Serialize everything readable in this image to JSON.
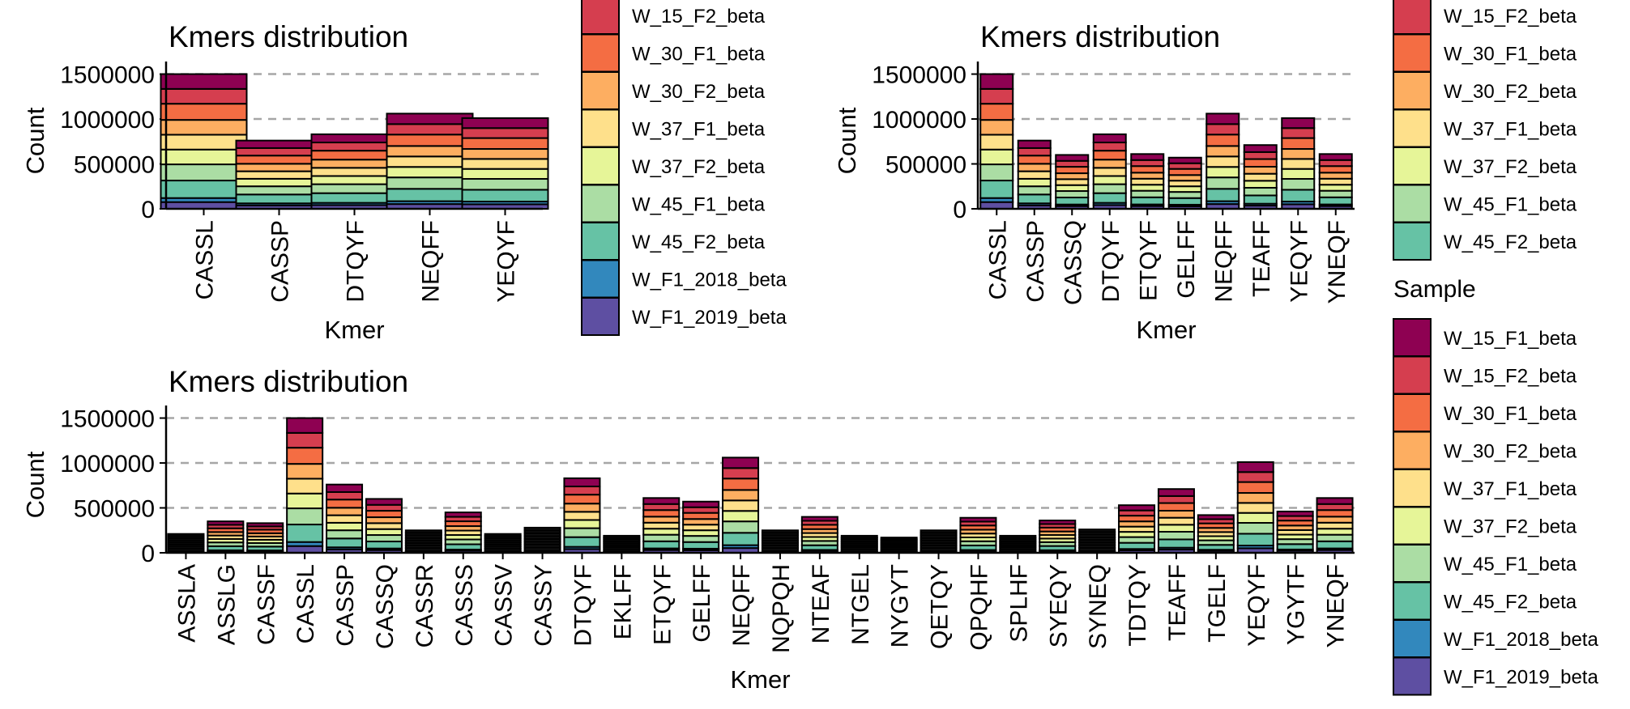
{
  "chart_data": [
    {
      "type": "bar",
      "stacked": true,
      "title": "Kmers distribution",
      "xlabel": "Kmer",
      "ylabel": "Count",
      "ylim": [
        0,
        1550000
      ],
      "yticks": [
        "0",
        "500000",
        "1000000",
        "1500000"
      ],
      "ytick_values": [
        0,
        500000,
        1000000,
        1500000
      ],
      "grid": "horizontal dashed",
      "categories": [
        "CASSL",
        "CASSP",
        "DTQYF",
        "NEQFF",
        "YEQYF"
      ],
      "totals": [
        1500000,
        760000,
        830000,
        1060000,
        1010000
      ],
      "legend_title": "",
      "legend_entries": [
        "W_15_F2_beta",
        "W_30_F1_beta",
        "W_30_F2_beta",
        "W_37_F1_beta",
        "W_37_F2_beta",
        "W_45_F1_beta",
        "W_45_F2_beta",
        "W_F1_2018_beta",
        "W_F1_2019_beta"
      ]
    },
    {
      "type": "bar",
      "stacked": true,
      "title": "Kmers distribution",
      "xlabel": "Kmer",
      "ylabel": "Count",
      "ylim": [
        0,
        1550000
      ],
      "yticks": [
        "0",
        "500000",
        "1000000",
        "1500000"
      ],
      "ytick_values": [
        0,
        500000,
        1000000,
        1500000
      ],
      "grid": "horizontal dashed",
      "categories": [
        "CASSL",
        "CASSP",
        "CASSQ",
        "DTQYF",
        "ETQYF",
        "GELFF",
        "NEQFF",
        "TEAFF",
        "YEQYF",
        "YNEQF"
      ],
      "totals": [
        1500000,
        760000,
        600000,
        830000,
        610000,
        570000,
        1060000,
        710000,
        1010000,
        610000
      ],
      "legend_title": "",
      "legend_entries": [
        "W_15_F2_beta",
        "W_30_F1_beta",
        "W_30_F2_beta",
        "W_37_F1_beta",
        "W_37_F2_beta",
        "W_45_F1_beta",
        "W_45_F2_beta"
      ]
    },
    {
      "type": "bar",
      "stacked": true,
      "title": "Kmers distribution",
      "xlabel": "Kmer",
      "ylabel": "Count",
      "ylim": [
        0,
        1550000
      ],
      "yticks": [
        "0",
        "500000",
        "1000000",
        "1500000"
      ],
      "ytick_values": [
        0,
        500000,
        1000000,
        1500000
      ],
      "grid": "horizontal dashed",
      "categories": [
        "ASSLA",
        "ASSLG",
        "CASSF",
        "CASSL",
        "CASSP",
        "CASSQ",
        "CASSR",
        "CASSS",
        "CASSV",
        "CASSY",
        "DTQYF",
        "EKLFF",
        "ETQYF",
        "GELFF",
        "NEQFF",
        "NQPQH",
        "NTEAF",
        "NTGEL",
        "NYGYT",
        "QETQY",
        "QPQHF",
        "SPLHF",
        "SYEQY",
        "SYNEQ",
        "TDTQY",
        "TEAFF",
        "TGELF",
        "YEQYF",
        "YGYTF",
        "YNEQF"
      ],
      "totals": [
        210000,
        350000,
        330000,
        1500000,
        760000,
        600000,
        250000,
        450000,
        210000,
        280000,
        830000,
        190000,
        610000,
        570000,
        1060000,
        250000,
        400000,
        190000,
        170000,
        250000,
        390000,
        190000,
        360000,
        260000,
        530000,
        710000,
        420000,
        1010000,
        460000,
        610000
      ],
      "legend_title": "Sample",
      "legend_entries": [
        "W_15_F1_beta",
        "W_15_F2_beta",
        "W_30_F1_beta",
        "W_30_F2_beta",
        "W_37_F1_beta",
        "W_37_F2_beta",
        "W_45_F1_beta",
        "W_45_F2_beta",
        "W_F1_2018_beta",
        "W_F1_2019_beta"
      ]
    }
  ],
  "sample_colors": {
    "W_15_F1_beta": "#8E0152",
    "W_15_F2_beta": "#D53E4F",
    "W_30_F1_beta": "#F46D43",
    "W_30_F2_beta": "#FDAE61",
    "W_37_F1_beta": "#FEE08B",
    "W_37_F2_beta": "#E6F598",
    "W_45_F1_beta": "#ABDDA4",
    "W_45_F2_beta": "#66C2A5",
    "W_F1_2018_beta": "#3288BD",
    "W_F1_2019_beta": "#5E4FA2"
  },
  "stack_fractions": {
    "W_F1_2019_beta": 0.05,
    "W_F1_2018_beta": 0.03,
    "W_45_F2_beta": 0.13,
    "W_45_F1_beta": 0.12,
    "W_37_F2_beta": 0.11,
    "W_37_F1_beta": 0.11,
    "W_30_F2_beta": 0.11,
    "W_30_F1_beta": 0.12,
    "W_15_F2_beta": 0.11,
    "W_15_F1_beta": 0.11
  }
}
